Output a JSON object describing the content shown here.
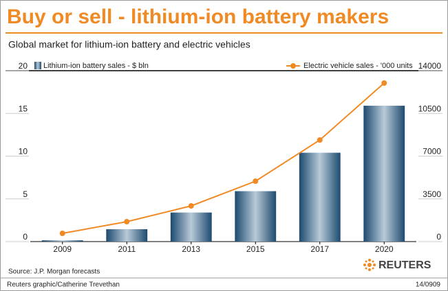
{
  "chart_data": {
    "type": "bar-line",
    "title": "Buy or sell - lithium-ion battery makers",
    "subtitle": "Global market for lithium-ion battery and electric vehicles",
    "categories": [
      "2009",
      "2011",
      "2013",
      "2015",
      "2017",
      "2020"
    ],
    "series": [
      {
        "name": "Lithium-ion battery sales - $ bln",
        "type": "bar",
        "color": "#2e5f86",
        "values": [
          0.15,
          1.45,
          3.4,
          5.9,
          10.4,
          15.9
        ]
      },
      {
        "name": "Electric vehicle sales - '000 units",
        "type": "line",
        "axis": "y2",
        "color": "#f08a24",
        "values": [
          675,
          1630,
          2924,
          4948,
          8321,
          12988
        ]
      }
    ],
    "ylim": [
      0,
      20
    ],
    "yticks": [
      0,
      5,
      10,
      15,
      20
    ],
    "y2lim": [
      0,
      14000
    ],
    "y2ticks": [
      0,
      3500,
      7000,
      10500,
      14000
    ],
    "source": "Source: J.P. Morgan forecasts",
    "brand": "REUTERS",
    "credit": "Reuters graphic/Catherine Trevethan",
    "date": "14/0909"
  }
}
